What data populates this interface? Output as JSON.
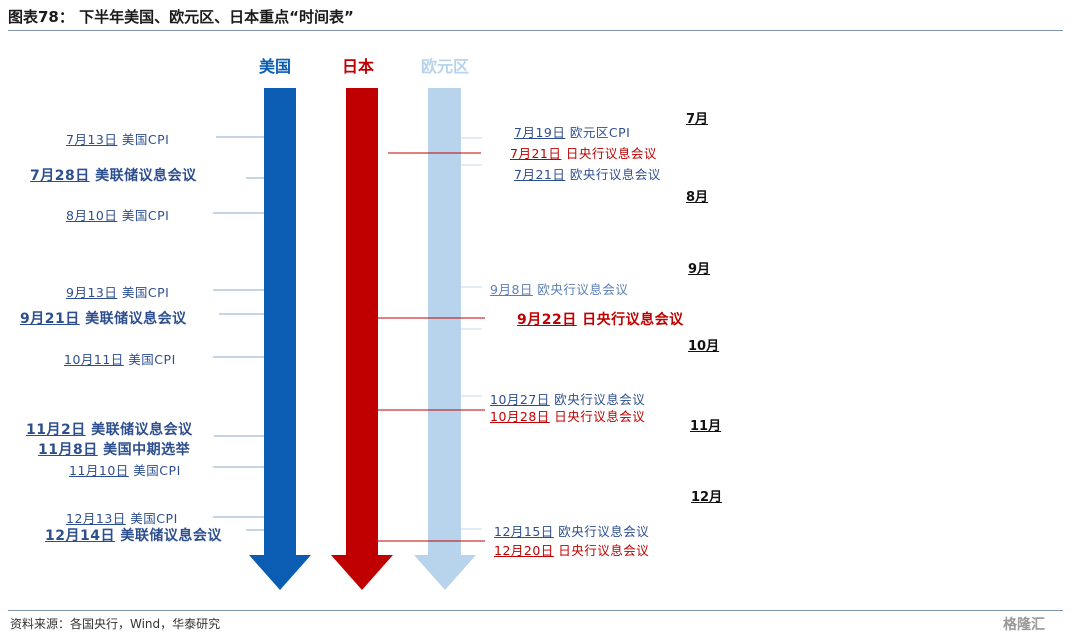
{
  "title": "图表78：  下半年美国、欧元区、日本重点“时间表”",
  "source": "资料来源：各国央行，Wind，华泰研究",
  "watermark": "格隆汇",
  "columns": [
    {
      "label": "美国",
      "color": "#0a5db2"
    },
    {
      "label": "日本",
      "color": "#c00000"
    },
    {
      "label": "欧元区",
      "color": "#b8d3ec"
    }
  ],
  "us_events": [
    {
      "date": "7月13日",
      "label": "美国CPI"
    },
    {
      "date": "7月28日",
      "label": "美联储议息会议"
    },
    {
      "date": "8月10日",
      "label": "美国CPI"
    },
    {
      "date": "9月13日",
      "label": "美国CPI"
    },
    {
      "date": "9月21日",
      "label": "美联储议息会议"
    },
    {
      "date": "10月11日",
      "label": "美国CPI"
    },
    {
      "date": "11月2日",
      "label": "美联储议息会议"
    },
    {
      "date": "11月8日",
      "label": "美国中期选举"
    },
    {
      "date": "11月10日",
      "label": "美国CPI"
    },
    {
      "date": "12月13日",
      "label": "美国CPI"
    },
    {
      "date": "12月14日",
      "label": "美联储议息会议"
    }
  ],
  "right_events": [
    {
      "date": "7月19日",
      "label": "欧元区CPI"
    },
    {
      "date": "7月21日",
      "label": "日央行议息会议"
    },
    {
      "date": "7月21日",
      "label": "欧央行议息会议"
    },
    {
      "date": "9月8日",
      "label": "欧央行议息会议"
    },
    {
      "date": "9月22日",
      "label": "日央行议息会议"
    },
    {
      "date": "10月27日",
      "label": "欧央行议息会议"
    },
    {
      "date": "10月28日",
      "label": "日央行议息会议"
    },
    {
      "date": "12月15日",
      "label": "欧央行议息会议"
    },
    {
      "date": "12月20日",
      "label": "日央行议息会议"
    }
  ],
  "months": [
    "7月",
    "8月",
    "9月",
    "10月",
    "11月",
    "12月"
  ]
}
